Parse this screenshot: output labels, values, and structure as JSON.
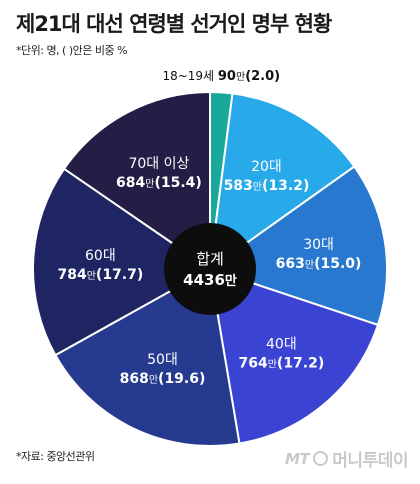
{
  "title": "제21대 대선 연령별 선거인 명부 현황",
  "unit_note": "*단위: 명, ( )안은 비중 %",
  "source_note": "*자료: 중앙선관위",
  "watermark": {
    "logo": "MT",
    "name": "머니투데이"
  },
  "colors": {
    "ring_stroke": "#ffffff",
    "center": "#0d0d0d",
    "label_dark": "#111111",
    "label_light": "#ffffff"
  },
  "chart_data": {
    "type": "pie",
    "title": "제21대 대선 연령별 선거인 명부 현황",
    "unit": "만",
    "center_label": {
      "title": "합계",
      "value": "4436",
      "unit": "만"
    },
    "slices": [
      {
        "label": "18~19세",
        "value": 90,
        "share": 2.0,
        "value_text": "90",
        "share_text": "2.0",
        "color": "#1aa89b"
      },
      {
        "label": "20대",
        "value": 583,
        "share": 13.2,
        "value_text": "583",
        "share_text": "13.2",
        "color": "#27a9ea"
      },
      {
        "label": "30대",
        "value": 663,
        "share": 15.0,
        "value_text": "663",
        "share_text": "15.0",
        "color": "#2878cf"
      },
      {
        "label": "40대",
        "value": 764,
        "share": 17.2,
        "value_text": "764",
        "share_text": "17.2",
        "color": "#3b43d2"
      },
      {
        "label": "50대",
        "value": 868,
        "share": 19.6,
        "value_text": "868",
        "share_text": "19.6",
        "color": "#263a90"
      },
      {
        "label": "60대",
        "value": 784,
        "share": 17.7,
        "value_text": "784",
        "share_text": "17.7",
        "color": "#1f2563"
      },
      {
        "label": "70대 이상",
        "value": 684,
        "share": 15.4,
        "value_text": "684",
        "share_text": "15.4",
        "color": "#241d45"
      }
    ]
  }
}
